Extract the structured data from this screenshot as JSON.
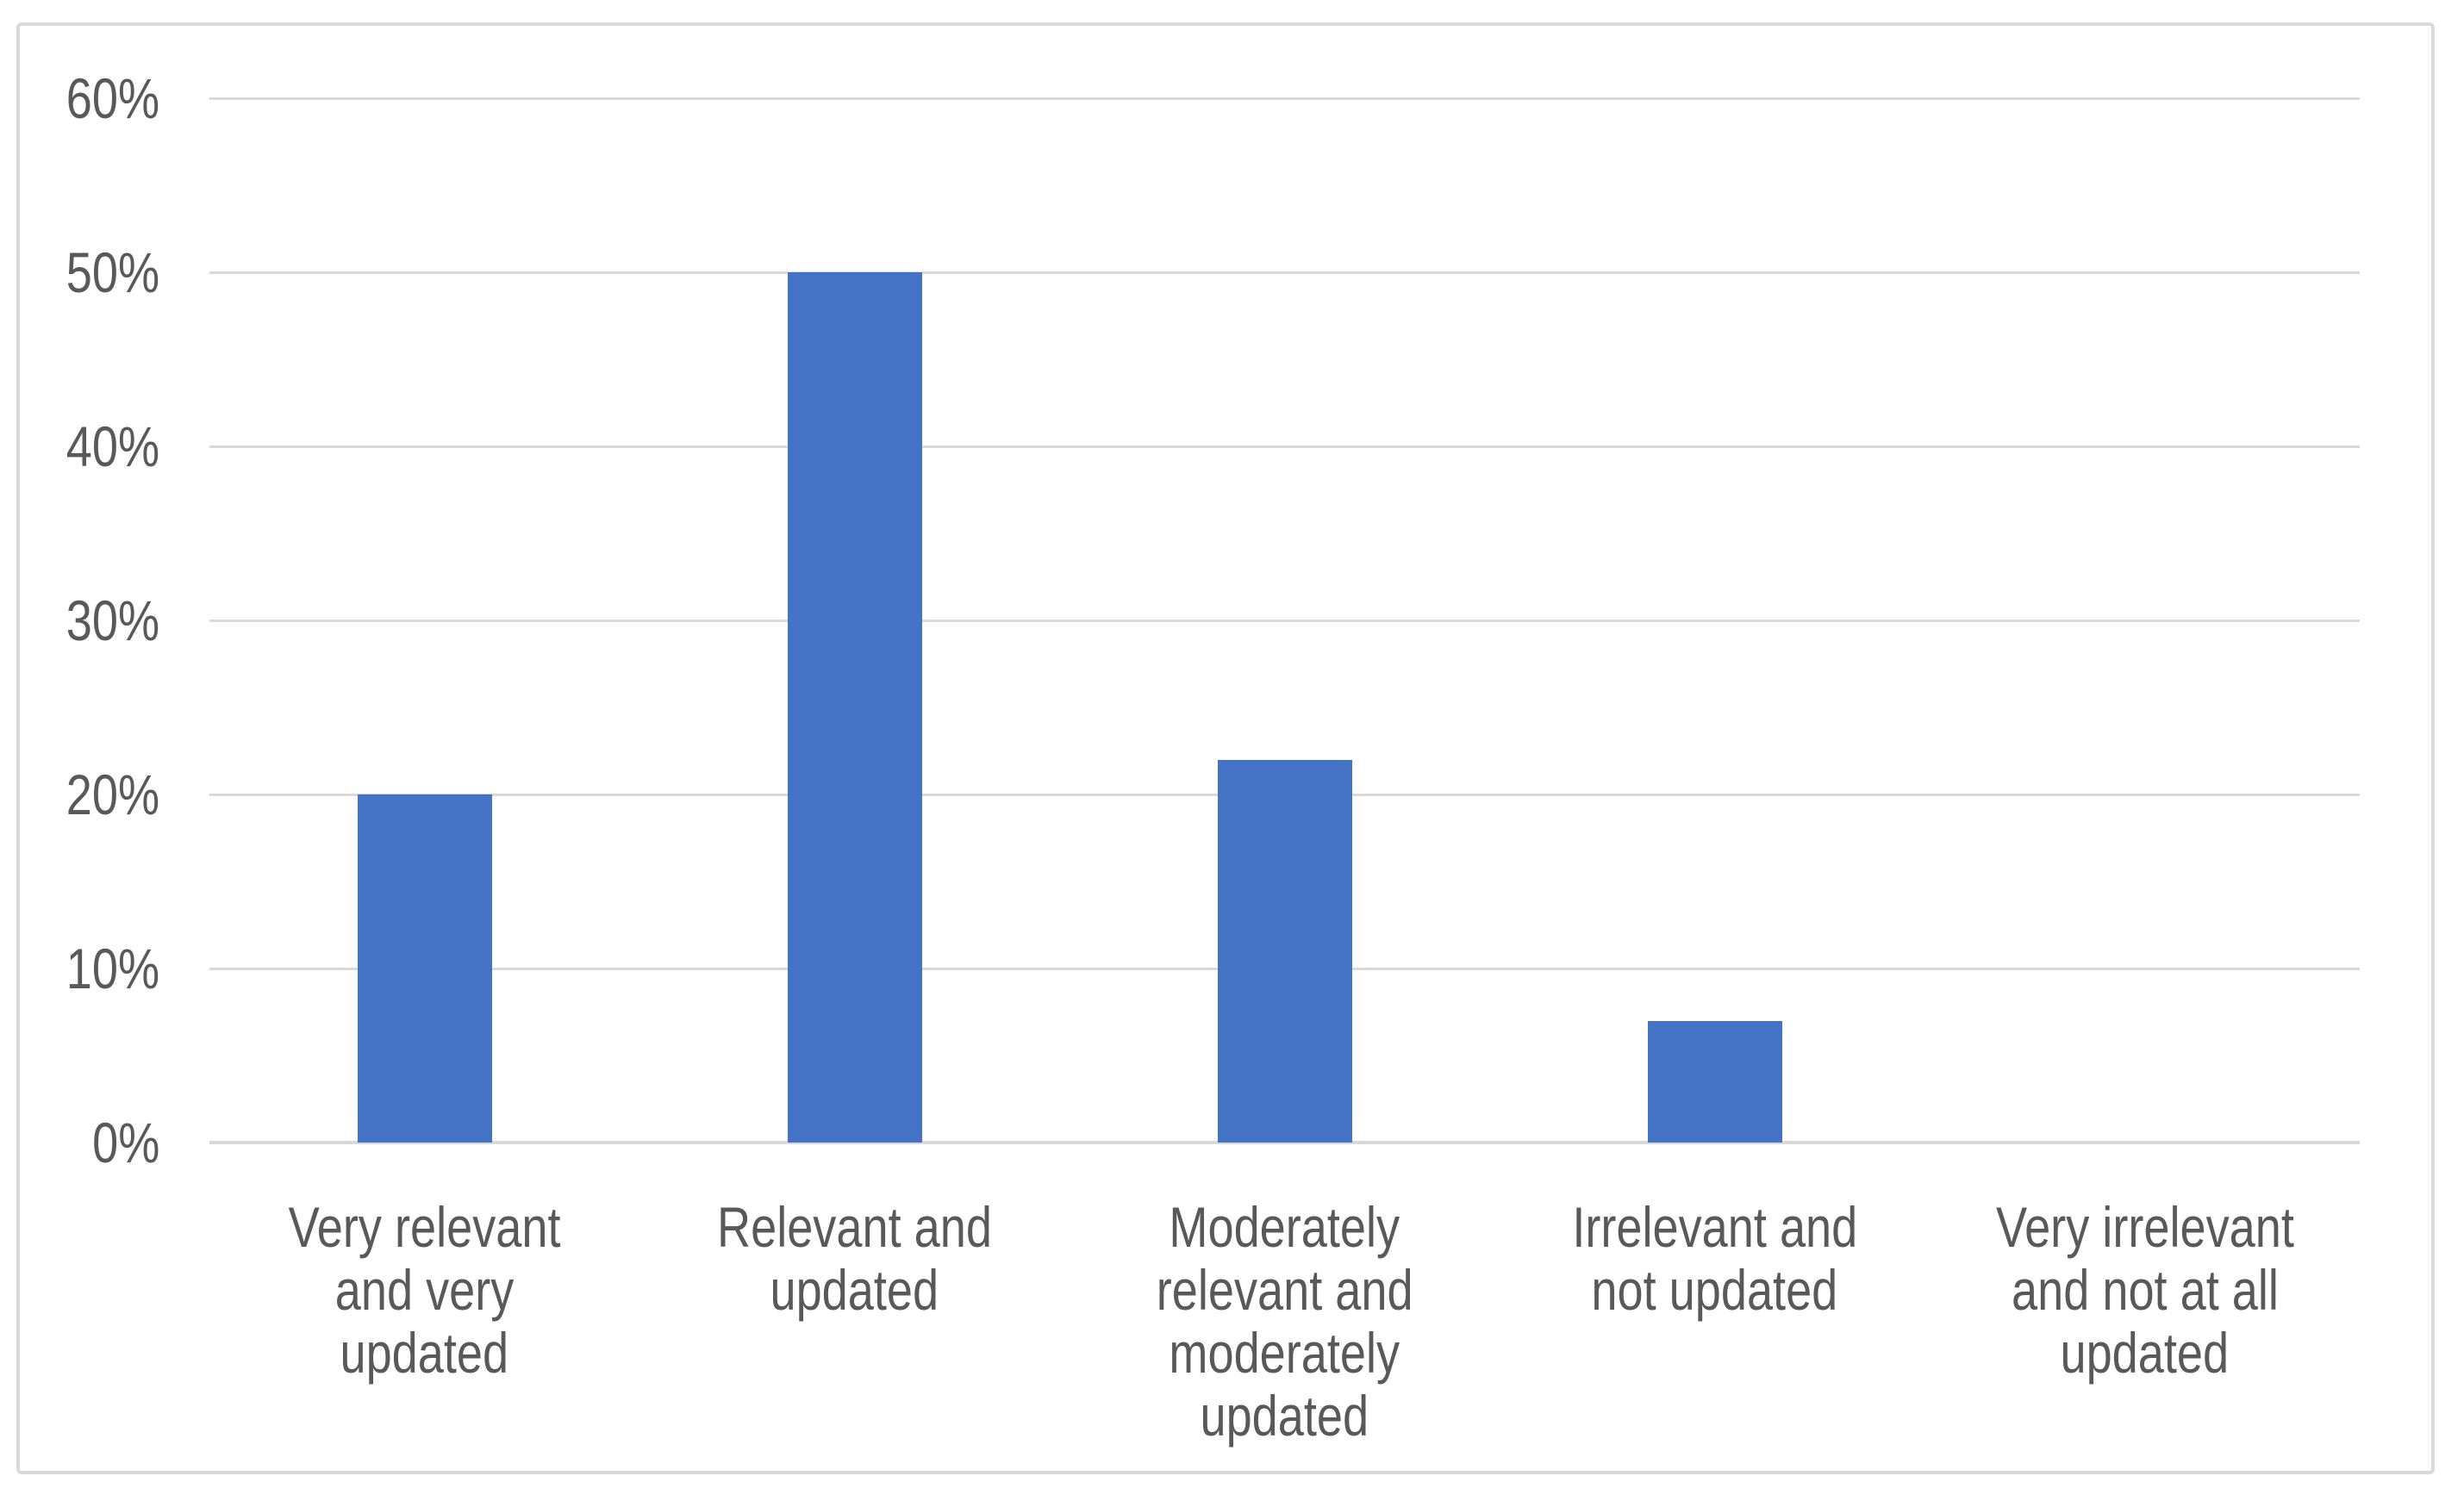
{
  "chart_data": {
    "type": "bar",
    "title": "",
    "xlabel": "",
    "ylabel": "",
    "categories": [
      "Very relevant and very updated",
      "Relevant and updated",
      "Moderately relevant and moderately updated",
      "Irrelevant and not updated",
      "Very irrelevant and not at all updated"
    ],
    "category_label_lines": [
      [
        "Very relevant",
        "and very",
        "updated"
      ],
      [
        "Relevant and",
        "updated"
      ],
      [
        "Moderately",
        "relevant and",
        "moderately",
        "updated"
      ],
      [
        "Irrelevant and",
        "not updated"
      ],
      [
        "Very irrelevant",
        "and not at all",
        "updated"
      ]
    ],
    "values": [
      20,
      50,
      22,
      7,
      0
    ],
    "value_unit": "%",
    "ylim": [
      0,
      60
    ],
    "ytick_step": 10,
    "ytick_labels": [
      "0%",
      "10%",
      "20%",
      "30%",
      "40%",
      "50%",
      "60%"
    ],
    "grid": true,
    "legend": false,
    "colors": {
      "bar_fill": "#4472C4",
      "gridline": "#D9D9D9",
      "axis_line": "#D9D9D9",
      "tick_text": "#595959",
      "frame_border": "#D9D9D9",
      "background": "#FFFFFF"
    }
  }
}
